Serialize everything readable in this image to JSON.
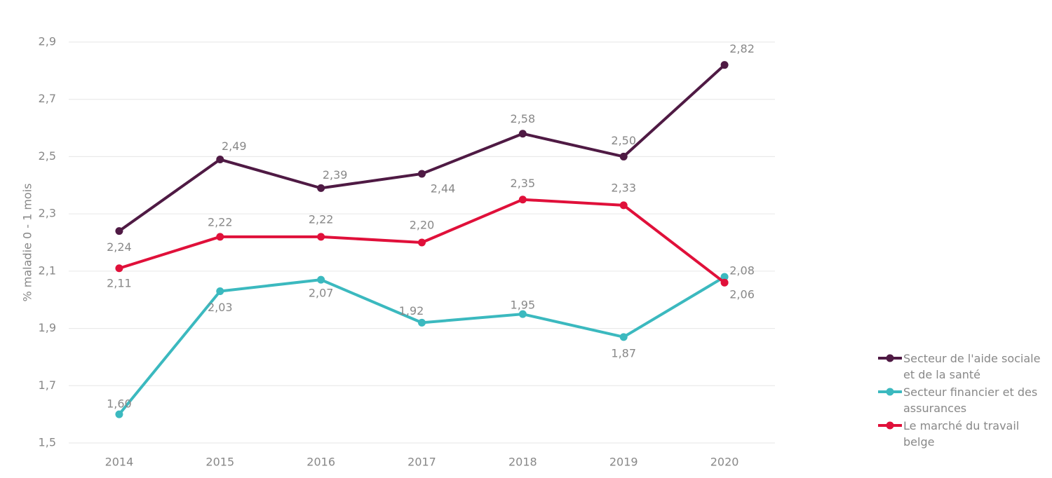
{
  "chart_data": {
    "type": "line",
    "y_label": "% maladie 0 - 1 mois",
    "categories": [
      "2014",
      "2015",
      "2016",
      "2017",
      "2018",
      "2019",
      "2020"
    ],
    "series": [
      {
        "name": "Secteur de l'aide sociale et de la santé",
        "color": "#4f1a44",
        "values": [
          2.24,
          2.49,
          2.39,
          2.44,
          2.58,
          2.5,
          2.82
        ],
        "value_labels": [
          "2,24",
          "2,49",
          "2,39",
          "2,44",
          "2,58",
          "2,50",
          "2,82"
        ]
      },
      {
        "name": "Secteur financier et des assurances",
        "color": "#3bb9bf",
        "values": [
          1.6,
          2.03,
          2.07,
          1.92,
          1.95,
          1.87,
          2.08
        ],
        "value_labels": [
          "1,60",
          "2,03",
          "2,07",
          "1,92",
          "1,95",
          "1,87",
          "2,08"
        ]
      },
      {
        "name": "Le marché du travail belge",
        "color": "#e0103a",
        "values": [
          2.11,
          2.22,
          2.22,
          2.2,
          2.35,
          2.33,
          2.06
        ],
        "value_labels": [
          "2,11",
          "2,22",
          "2,22",
          "2,20",
          "2,35",
          "2,33",
          "2,06"
        ]
      }
    ],
    "ylim": [
      1.5,
      2.9
    ],
    "yticks": [
      {
        "value": 1.5,
        "label": "1,5"
      },
      {
        "value": 1.7,
        "label": "1,7"
      },
      {
        "value": 1.9,
        "label": "1,9"
      },
      {
        "value": 2.1,
        "label": "2,1"
      },
      {
        "value": 2.3,
        "label": "2,3"
      },
      {
        "value": 2.5,
        "label": "2,5"
      },
      {
        "value": 2.7,
        "label": "2,7"
      },
      {
        "value": 2.9,
        "label": "2,9"
      }
    ],
    "grid": true,
    "legend": "right"
  }
}
